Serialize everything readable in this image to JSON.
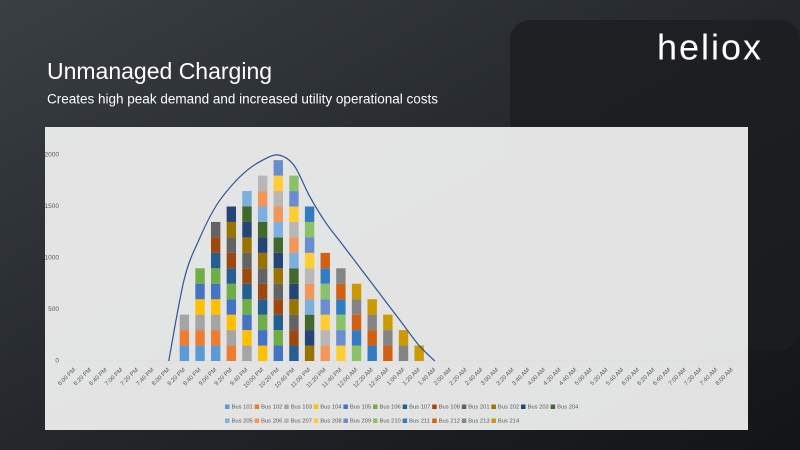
{
  "logo": "heliox",
  "chart_data": {
    "type": "stacked-bar",
    "title": "Unmanaged Charging",
    "subtitle": "Creates high peak demand and increased utility operational costs",
    "categories": [
      "6:00 PM",
      "6:20 PM",
      "6:40 PM",
      "7:00 PM",
      "7:20 PM",
      "7:40 PM",
      "8:00 PM",
      "8:20 PM",
      "8:40 PM",
      "9:00 PM",
      "9:20 PM",
      "9:40 PM",
      "10:00 PM",
      "10:20 PM",
      "10:40 PM",
      "11:00 PM",
      "11:20 PM",
      "11:40 PM",
      "12:00 AM",
      "12:20 AM",
      "12:40 AM",
      "1:00 AM",
      "1:20 AM",
      "1:40 AM",
      "2:00 AM",
      "2:20 AM",
      "2:40 AM",
      "3:00 AM",
      "3:20 AM",
      "3:40 AM",
      "4:00 AM",
      "4:20 AM",
      "4:40 AM",
      "5:00 AM",
      "5:20 AM",
      "5:40 AM",
      "6:00 AM",
      "6:20 AM",
      "6:40 AM",
      "7:00 AM",
      "7:20 AM",
      "7:40 AM",
      "8:00 AM"
    ],
    "ylim": [
      0,
      2000
    ],
    "yticks": [
      0,
      500,
      1000,
      1500,
      2000
    ],
    "series": [
      {
        "name": "Bus 101",
        "color": "#5b9bd5",
        "values": [
          0,
          0,
          0,
          0,
          0,
          0,
          0,
          150,
          150,
          150,
          0,
          0,
          0,
          0,
          0,
          0,
          0,
          0,
          0,
          0,
          0,
          0,
          0,
          0,
          0,
          0,
          0,
          0,
          0,
          0,
          0,
          0,
          0,
          0,
          0,
          0,
          0,
          0,
          0,
          0,
          0,
          0,
          0
        ]
      },
      {
        "name": "Bus 102",
        "color": "#ed7d31",
        "values": [
          0,
          0,
          0,
          0,
          0,
          0,
          0,
          150,
          150,
          150,
          150,
          0,
          0,
          0,
          0,
          0,
          0,
          0,
          0,
          0,
          0,
          0,
          0,
          0,
          0,
          0,
          0,
          0,
          0,
          0,
          0,
          0,
          0,
          0,
          0,
          0,
          0,
          0,
          0,
          0,
          0,
          0,
          0
        ]
      },
      {
        "name": "Bus 103",
        "color": "#a5a5a5",
        "values": [
          0,
          0,
          0,
          0,
          0,
          0,
          0,
          150,
          150,
          150,
          150,
          150,
          0,
          0,
          0,
          0,
          0,
          0,
          0,
          0,
          0,
          0,
          0,
          0,
          0,
          0,
          0,
          0,
          0,
          0,
          0,
          0,
          0,
          0,
          0,
          0,
          0,
          0,
          0,
          0,
          0,
          0,
          0
        ]
      },
      {
        "name": "Bus 104",
        "color": "#ffc000",
        "values": [
          0,
          0,
          0,
          0,
          0,
          0,
          0,
          0,
          150,
          150,
          150,
          150,
          150,
          0,
          0,
          0,
          0,
          0,
          0,
          0,
          0,
          0,
          0,
          0,
          0,
          0,
          0,
          0,
          0,
          0,
          0,
          0,
          0,
          0,
          0,
          0,
          0,
          0,
          0,
          0,
          0,
          0,
          0
        ]
      },
      {
        "name": "Bus 105",
        "color": "#4472c4",
        "values": [
          0,
          0,
          0,
          0,
          0,
          0,
          0,
          0,
          150,
          150,
          150,
          150,
          150,
          150,
          0,
          0,
          0,
          0,
          0,
          0,
          0,
          0,
          0,
          0,
          0,
          0,
          0,
          0,
          0,
          0,
          0,
          0,
          0,
          0,
          0,
          0,
          0,
          0,
          0,
          0,
          0,
          0,
          0
        ]
      },
      {
        "name": "Bus 106",
        "color": "#70ad47",
        "values": [
          0,
          0,
          0,
          0,
          0,
          0,
          0,
          0,
          150,
          150,
          150,
          150,
          150,
          150,
          0,
          0,
          0,
          0,
          0,
          0,
          0,
          0,
          0,
          0,
          0,
          0,
          0,
          0,
          0,
          0,
          0,
          0,
          0,
          0,
          0,
          0,
          0,
          0,
          0,
          0,
          0,
          0,
          0
        ]
      },
      {
        "name": "Bus 107",
        "color": "#255e91",
        "values": [
          0,
          0,
          0,
          0,
          0,
          0,
          0,
          0,
          0,
          150,
          150,
          150,
          150,
          150,
          150,
          0,
          0,
          0,
          0,
          0,
          0,
          0,
          0,
          0,
          0,
          0,
          0,
          0,
          0,
          0,
          0,
          0,
          0,
          0,
          0,
          0,
          0,
          0,
          0,
          0,
          0,
          0,
          0
        ]
      },
      {
        "name": "Bus 108",
        "color": "#9e480e",
        "values": [
          0,
          0,
          0,
          0,
          0,
          0,
          0,
          0,
          0,
          150,
          150,
          150,
          150,
          150,
          150,
          0,
          0,
          0,
          0,
          0,
          0,
          0,
          0,
          0,
          0,
          0,
          0,
          0,
          0,
          0,
          0,
          0,
          0,
          0,
          0,
          0,
          0,
          0,
          0,
          0,
          0,
          0,
          0
        ]
      },
      {
        "name": "Bus 201",
        "color": "#636363",
        "values": [
          0,
          0,
          0,
          0,
          0,
          0,
          0,
          0,
          0,
          150,
          150,
          150,
          150,
          150,
          150,
          0,
          0,
          0,
          0,
          0,
          0,
          0,
          0,
          0,
          0,
          0,
          0,
          0,
          0,
          0,
          0,
          0,
          0,
          0,
          0,
          0,
          0,
          0,
          0,
          0,
          0,
          0,
          0
        ]
      },
      {
        "name": "Bus 202",
        "color": "#997300",
        "values": [
          0,
          0,
          0,
          0,
          0,
          0,
          0,
          0,
          0,
          0,
          150,
          150,
          150,
          150,
          150,
          150,
          0,
          0,
          0,
          0,
          0,
          0,
          0,
          0,
          0,
          0,
          0,
          0,
          0,
          0,
          0,
          0,
          0,
          0,
          0,
          0,
          0,
          0,
          0,
          0,
          0,
          0,
          0
        ]
      },
      {
        "name": "Bus 203",
        "color": "#264478",
        "values": [
          0,
          0,
          0,
          0,
          0,
          0,
          0,
          0,
          0,
          0,
          150,
          150,
          150,
          150,
          150,
          150,
          0,
          0,
          0,
          0,
          0,
          0,
          0,
          0,
          0,
          0,
          0,
          0,
          0,
          0,
          0,
          0,
          0,
          0,
          0,
          0,
          0,
          0,
          0,
          0,
          0,
          0,
          0
        ]
      },
      {
        "name": "Bus 204",
        "color": "#43682b",
        "values": [
          0,
          0,
          0,
          0,
          0,
          0,
          0,
          0,
          0,
          0,
          0,
          150,
          150,
          150,
          150,
          150,
          0,
          0,
          0,
          0,
          0,
          0,
          0,
          0,
          0,
          0,
          0,
          0,
          0,
          0,
          0,
          0,
          0,
          0,
          0,
          0,
          0,
          0,
          0,
          0,
          0,
          0,
          0
        ]
      },
      {
        "name": "Bus 205",
        "color": "#7cafdd",
        "values": [
          0,
          0,
          0,
          0,
          0,
          0,
          0,
          0,
          0,
          0,
          0,
          150,
          150,
          150,
          150,
          150,
          0,
          0,
          0,
          0,
          0,
          0,
          0,
          0,
          0,
          0,
          0,
          0,
          0,
          0,
          0,
          0,
          0,
          0,
          0,
          0,
          0,
          0,
          0,
          0,
          0,
          0,
          0
        ]
      },
      {
        "name": "Bus 206",
        "color": "#f1975a",
        "values": [
          0,
          0,
          0,
          0,
          0,
          0,
          0,
          0,
          0,
          0,
          0,
          0,
          150,
          150,
          150,
          150,
          150,
          0,
          0,
          0,
          0,
          0,
          0,
          0,
          0,
          0,
          0,
          0,
          0,
          0,
          0,
          0,
          0,
          0,
          0,
          0,
          0,
          0,
          0,
          0,
          0,
          0,
          0
        ]
      },
      {
        "name": "Bus 207",
        "color": "#b7b7b7",
        "values": [
          0,
          0,
          0,
          0,
          0,
          0,
          0,
          0,
          0,
          0,
          0,
          0,
          150,
          150,
          150,
          150,
          150,
          0,
          0,
          0,
          0,
          0,
          0,
          0,
          0,
          0,
          0,
          0,
          0,
          0,
          0,
          0,
          0,
          0,
          0,
          0,
          0,
          0,
          0,
          0,
          0,
          0,
          0
        ]
      },
      {
        "name": "Bus 208",
        "color": "#ffcd33",
        "values": [
          0,
          0,
          0,
          0,
          0,
          0,
          0,
          0,
          0,
          0,
          0,
          0,
          0,
          150,
          150,
          150,
          150,
          150,
          0,
          0,
          0,
          0,
          0,
          0,
          0,
          0,
          0,
          0,
          0,
          0,
          0,
          0,
          0,
          0,
          0,
          0,
          0,
          0,
          0,
          0,
          0,
          0,
          0
        ]
      },
      {
        "name": "Bus 209",
        "color": "#698ed0",
        "values": [
          0,
          0,
          0,
          0,
          0,
          0,
          0,
          0,
          0,
          0,
          0,
          0,
          0,
          150,
          150,
          150,
          150,
          150,
          0,
          0,
          0,
          0,
          0,
          0,
          0,
          0,
          0,
          0,
          0,
          0,
          0,
          0,
          0,
          0,
          0,
          0,
          0,
          0,
          0,
          0,
          0,
          0,
          0
        ]
      },
      {
        "name": "Bus 210",
        "color": "#8cc168",
        "values": [
          0,
          0,
          0,
          0,
          0,
          0,
          0,
          0,
          0,
          0,
          0,
          0,
          0,
          0,
          150,
          150,
          150,
          150,
          150,
          0,
          0,
          0,
          0,
          0,
          0,
          0,
          0,
          0,
          0,
          0,
          0,
          0,
          0,
          0,
          0,
          0,
          0,
          0,
          0,
          0,
          0,
          0,
          0
        ]
      },
      {
        "name": "Bus 211",
        "color": "#327dc2",
        "values": [
          0,
          0,
          0,
          0,
          0,
          0,
          0,
          0,
          0,
          0,
          0,
          0,
          0,
          0,
          0,
          150,
          150,
          150,
          150,
          150,
          0,
          0,
          0,
          0,
          0,
          0,
          0,
          0,
          0,
          0,
          0,
          0,
          0,
          0,
          0,
          0,
          0,
          0,
          0,
          0,
          0,
          0,
          0
        ]
      },
      {
        "name": "Bus 212",
        "color": "#d26012",
        "values": [
          0,
          0,
          0,
          0,
          0,
          0,
          0,
          0,
          0,
          0,
          0,
          0,
          0,
          0,
          0,
          0,
          150,
          150,
          150,
          150,
          150,
          0,
          0,
          0,
          0,
          0,
          0,
          0,
          0,
          0,
          0,
          0,
          0,
          0,
          0,
          0,
          0,
          0,
          0,
          0,
          0,
          0,
          0
        ]
      },
      {
        "name": "Bus 213",
        "color": "#848484",
        "values": [
          0,
          0,
          0,
          0,
          0,
          0,
          0,
          0,
          0,
          0,
          0,
          0,
          0,
          0,
          0,
          0,
          0,
          150,
          150,
          150,
          150,
          150,
          0,
          0,
          0,
          0,
          0,
          0,
          0,
          0,
          0,
          0,
          0,
          0,
          0,
          0,
          0,
          0,
          0,
          0,
          0,
          0,
          0
        ]
      },
      {
        "name": "Bus 214",
        "color": "#cc9a00",
        "values": [
          0,
          0,
          0,
          0,
          0,
          0,
          0,
          0,
          0,
          0,
          0,
          0,
          0,
          0,
          0,
          0,
          0,
          0,
          150,
          150,
          150,
          150,
          150,
          0,
          0,
          0,
          0,
          0,
          0,
          0,
          0,
          0,
          0,
          0,
          0,
          0,
          0,
          0,
          0,
          0,
          0,
          0,
          0
        ]
      }
    ],
    "envelope": {
      "color": "#2f5597",
      "values": [
        null,
        null,
        null,
        null,
        null,
        null,
        0,
        800,
        1200,
        1500,
        1700,
        1850,
        1950,
        2000,
        1900,
        1600,
        1350,
        1150,
        950,
        750,
        550,
        350,
        150,
        0,
        null,
        null,
        null,
        null,
        null,
        null,
        null,
        null,
        null,
        null,
        null,
        null,
        null,
        null,
        null,
        null,
        null,
        null,
        null
      ]
    }
  }
}
